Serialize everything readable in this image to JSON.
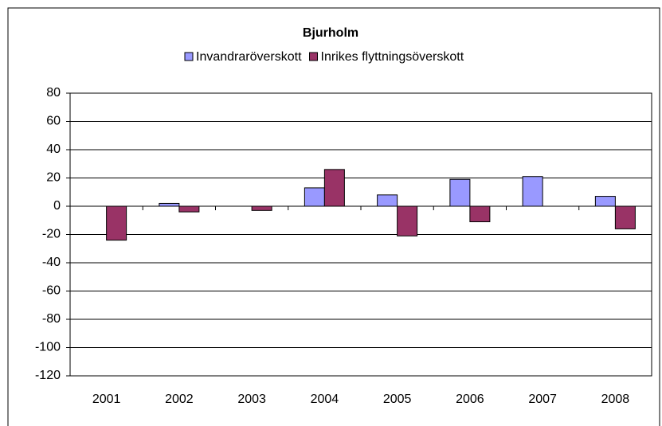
{
  "chart_data": {
    "type": "bar",
    "title": "Bjurholm",
    "categories": [
      "2001",
      "2002",
      "2003",
      "2004",
      "2005",
      "2006",
      "2007",
      "2008"
    ],
    "series": [
      {
        "name": "Invandraröverskott",
        "color": "#9999ff",
        "values": [
          0,
          2,
          0,
          13,
          8,
          19,
          21,
          7
        ]
      },
      {
        "name": "Inrikes flyttningsöverskott",
        "color": "#993366",
        "values": [
          -24,
          -4,
          -3,
          26,
          -21,
          -11,
          0,
          -16
        ]
      }
    ],
    "ylim": [
      -120,
      80
    ],
    "yticks": [
      -120,
      -100,
      -80,
      -60,
      -40,
      -20,
      0,
      20,
      40,
      60,
      80
    ],
    "grid": true,
    "legend": "top"
  }
}
